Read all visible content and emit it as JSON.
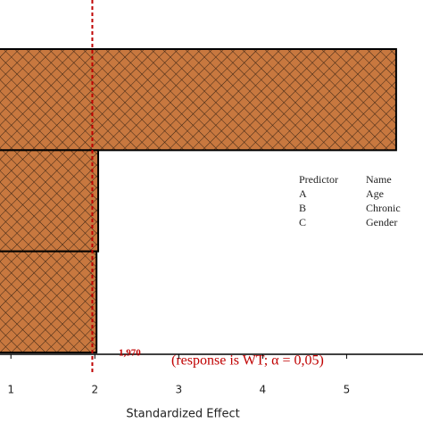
{
  "chart_data": {
    "type": "bar",
    "orientation": "horizontal",
    "categories": [
      null,
      null,
      null
    ],
    "values": [
      5.59,
      2.04,
      2.02
    ],
    "color": "#c8783f",
    "xlim": [
      0.87,
      5.91
    ],
    "xticks": [
      1,
      2,
      3,
      4,
      5
    ],
    "xlabel": "Standardized Effect",
    "reference_line": {
      "value": 1.97,
      "label": "1,970",
      "color": "#c00000"
    },
    "annotation": "(response is WT; α = 0,05)",
    "legend_table": {
      "header": [
        "Predictor",
        "Name"
      ],
      "rows": [
        [
          "A",
          "Age"
        ],
        [
          "B",
          "Chronic"
        ],
        [
          "C",
          "Gender"
        ]
      ]
    }
  }
}
